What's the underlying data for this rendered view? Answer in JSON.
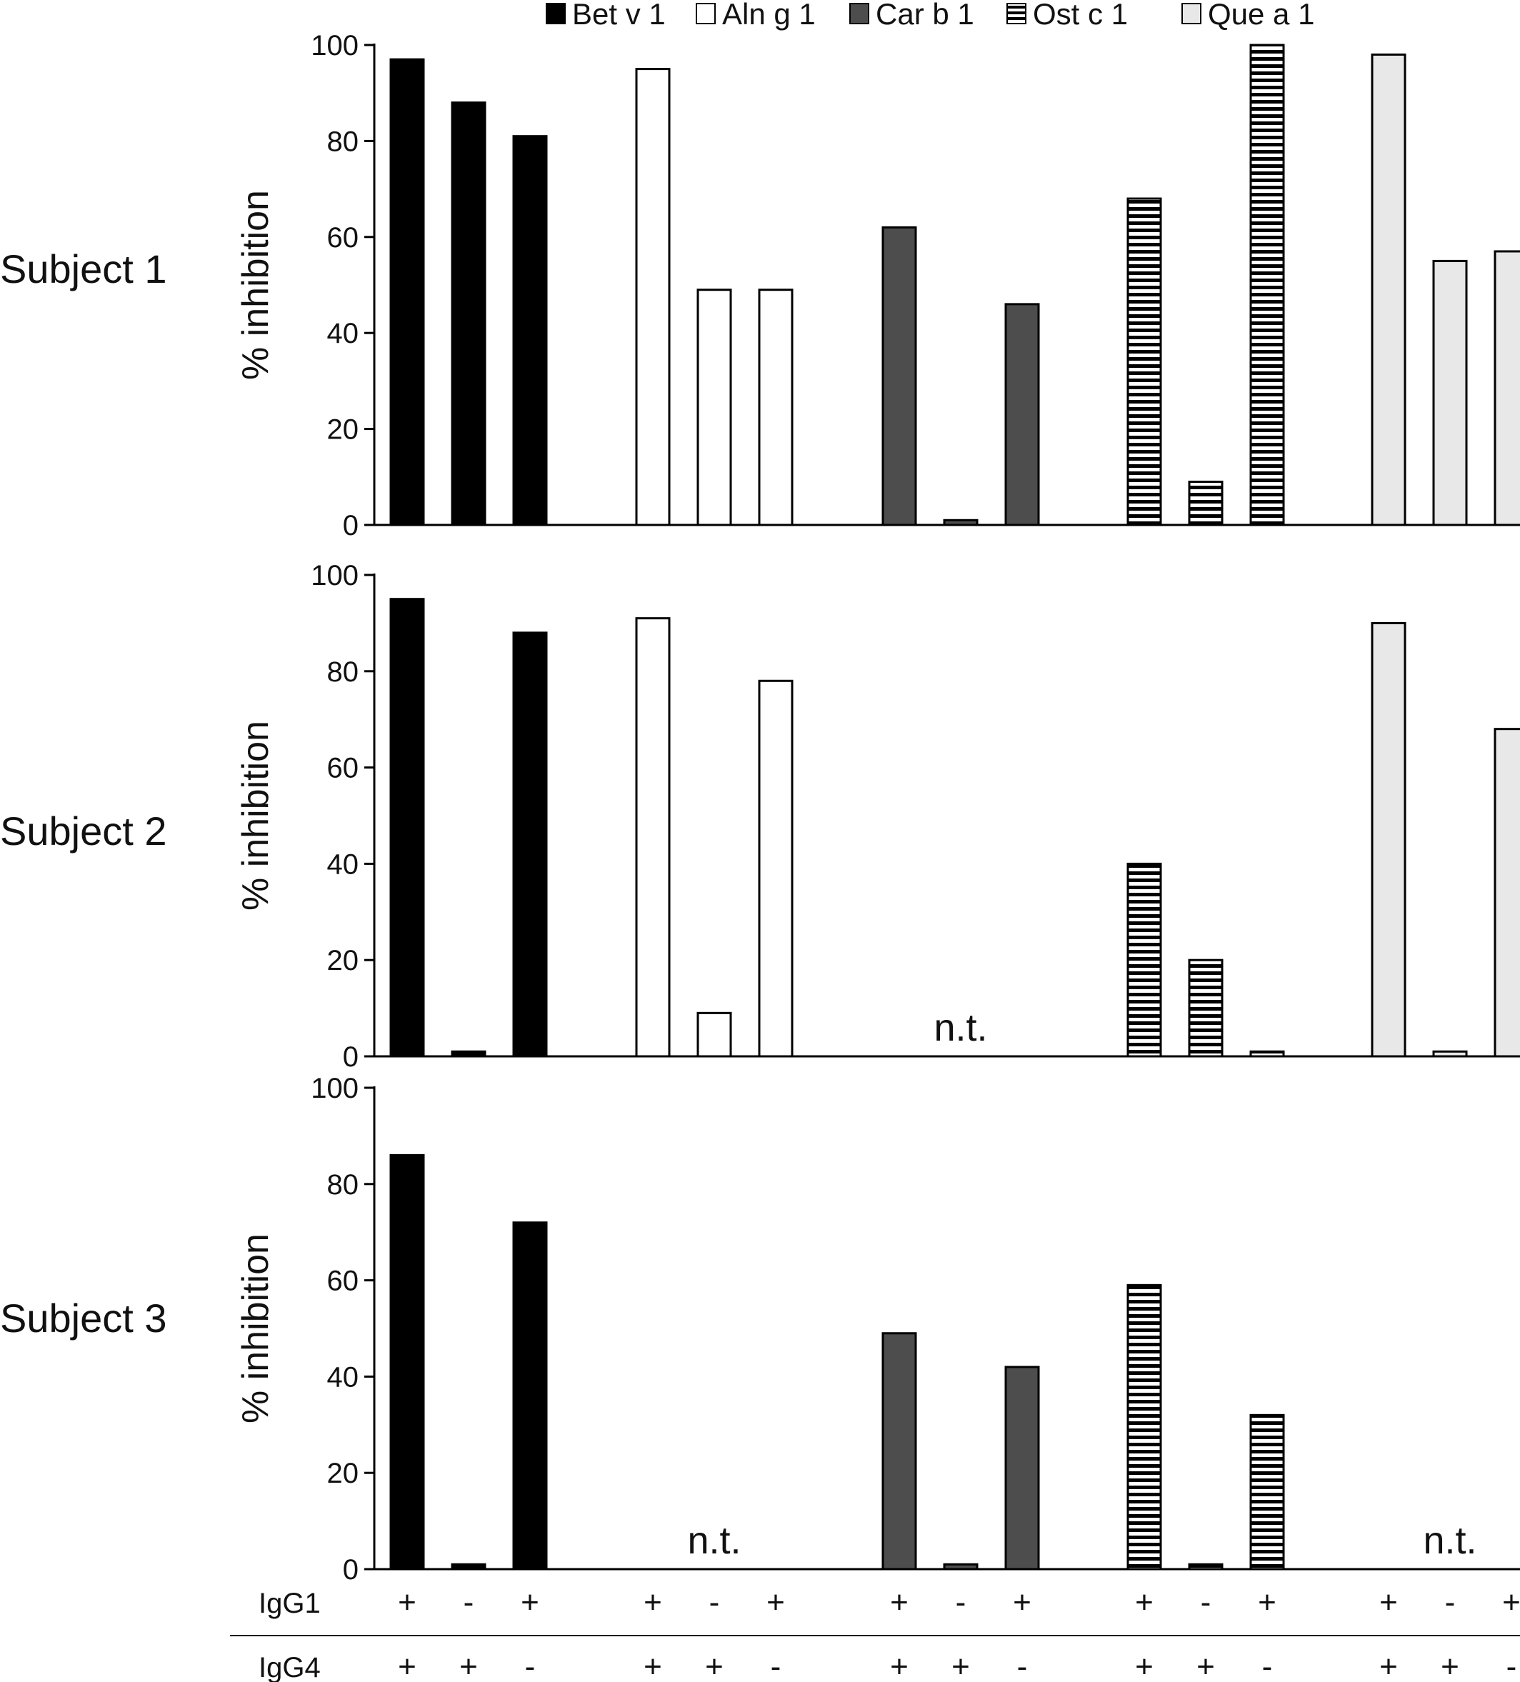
{
  "legend": [
    {
      "label": "Bet v 1",
      "fill": "#000000",
      "pattern": "solid"
    },
    {
      "label": "Aln g 1",
      "fill": "#ffffff",
      "pattern": "solid"
    },
    {
      "label": "Car b 1",
      "fill": "#4d4d4d",
      "pattern": "solid"
    },
    {
      "label": "Ost c 1",
      "fill": "#ffffff",
      "pattern": "horizontal-stripes"
    },
    {
      "label": "Que a 1",
      "fill": "#e8e8e8",
      "pattern": "solid"
    }
  ],
  "chart_data": [
    {
      "type": "bar",
      "subject": "Subject 1",
      "ylabel": "% inhibition",
      "ylim": [
        0,
        100
      ],
      "yticks": [
        0,
        20,
        40,
        60,
        80,
        100
      ],
      "grid": false,
      "series": [
        {
          "name": "Bet v 1",
          "values": [
            97,
            88,
            81
          ],
          "nt": false
        },
        {
          "name": "Aln g 1",
          "values": [
            95,
            49,
            49
          ],
          "nt": false
        },
        {
          "name": "Car b 1",
          "values": [
            62,
            1,
            46
          ],
          "nt": false
        },
        {
          "name": "Ost c 1",
          "values": [
            68,
            9,
            100
          ],
          "nt": false
        },
        {
          "name": "Que a 1",
          "values": [
            98,
            55,
            57
          ],
          "nt": false
        }
      ]
    },
    {
      "type": "bar",
      "subject": "Subject 2",
      "ylabel": "% inhibition",
      "ylim": [
        0,
        100
      ],
      "yticks": [
        0,
        20,
        40,
        60,
        80,
        100
      ],
      "grid": false,
      "series": [
        {
          "name": "Bet v 1",
          "values": [
            95,
            1,
            88
          ],
          "nt": false
        },
        {
          "name": "Aln g 1",
          "values": [
            91,
            9,
            78
          ],
          "nt": false
        },
        {
          "name": "Car b 1",
          "values": [],
          "nt": true
        },
        {
          "name": "Ost c 1",
          "values": [
            40,
            20,
            1
          ],
          "nt": false
        },
        {
          "name": "Que a 1",
          "values": [
            90,
            1,
            68
          ],
          "nt": false
        }
      ]
    },
    {
      "type": "bar",
      "subject": "Subject 3",
      "ylabel": "% inhibition",
      "ylim": [
        0,
        100
      ],
      "yticks": [
        0,
        20,
        40,
        60,
        80,
        100
      ],
      "grid": false,
      "series": [
        {
          "name": "Bet v 1",
          "values": [
            86,
            1,
            72
          ],
          "nt": false
        },
        {
          "name": "Aln g 1",
          "values": [],
          "nt": true
        },
        {
          "name": "Car b 1",
          "values": [
            49,
            1,
            42
          ],
          "nt": false
        },
        {
          "name": "Ost c 1",
          "values": [
            59,
            1,
            32
          ],
          "nt": false
        },
        {
          "name": "Que a 1",
          "values": [],
          "nt": true
        }
      ]
    }
  ],
  "nt_label": "n.t.",
  "conditions": {
    "rows": [
      {
        "label": "IgG1",
        "signs": [
          "+",
          "-",
          "+"
        ]
      },
      {
        "label": "IgG4",
        "signs": [
          "+",
          "+",
          "-"
        ]
      }
    ]
  }
}
